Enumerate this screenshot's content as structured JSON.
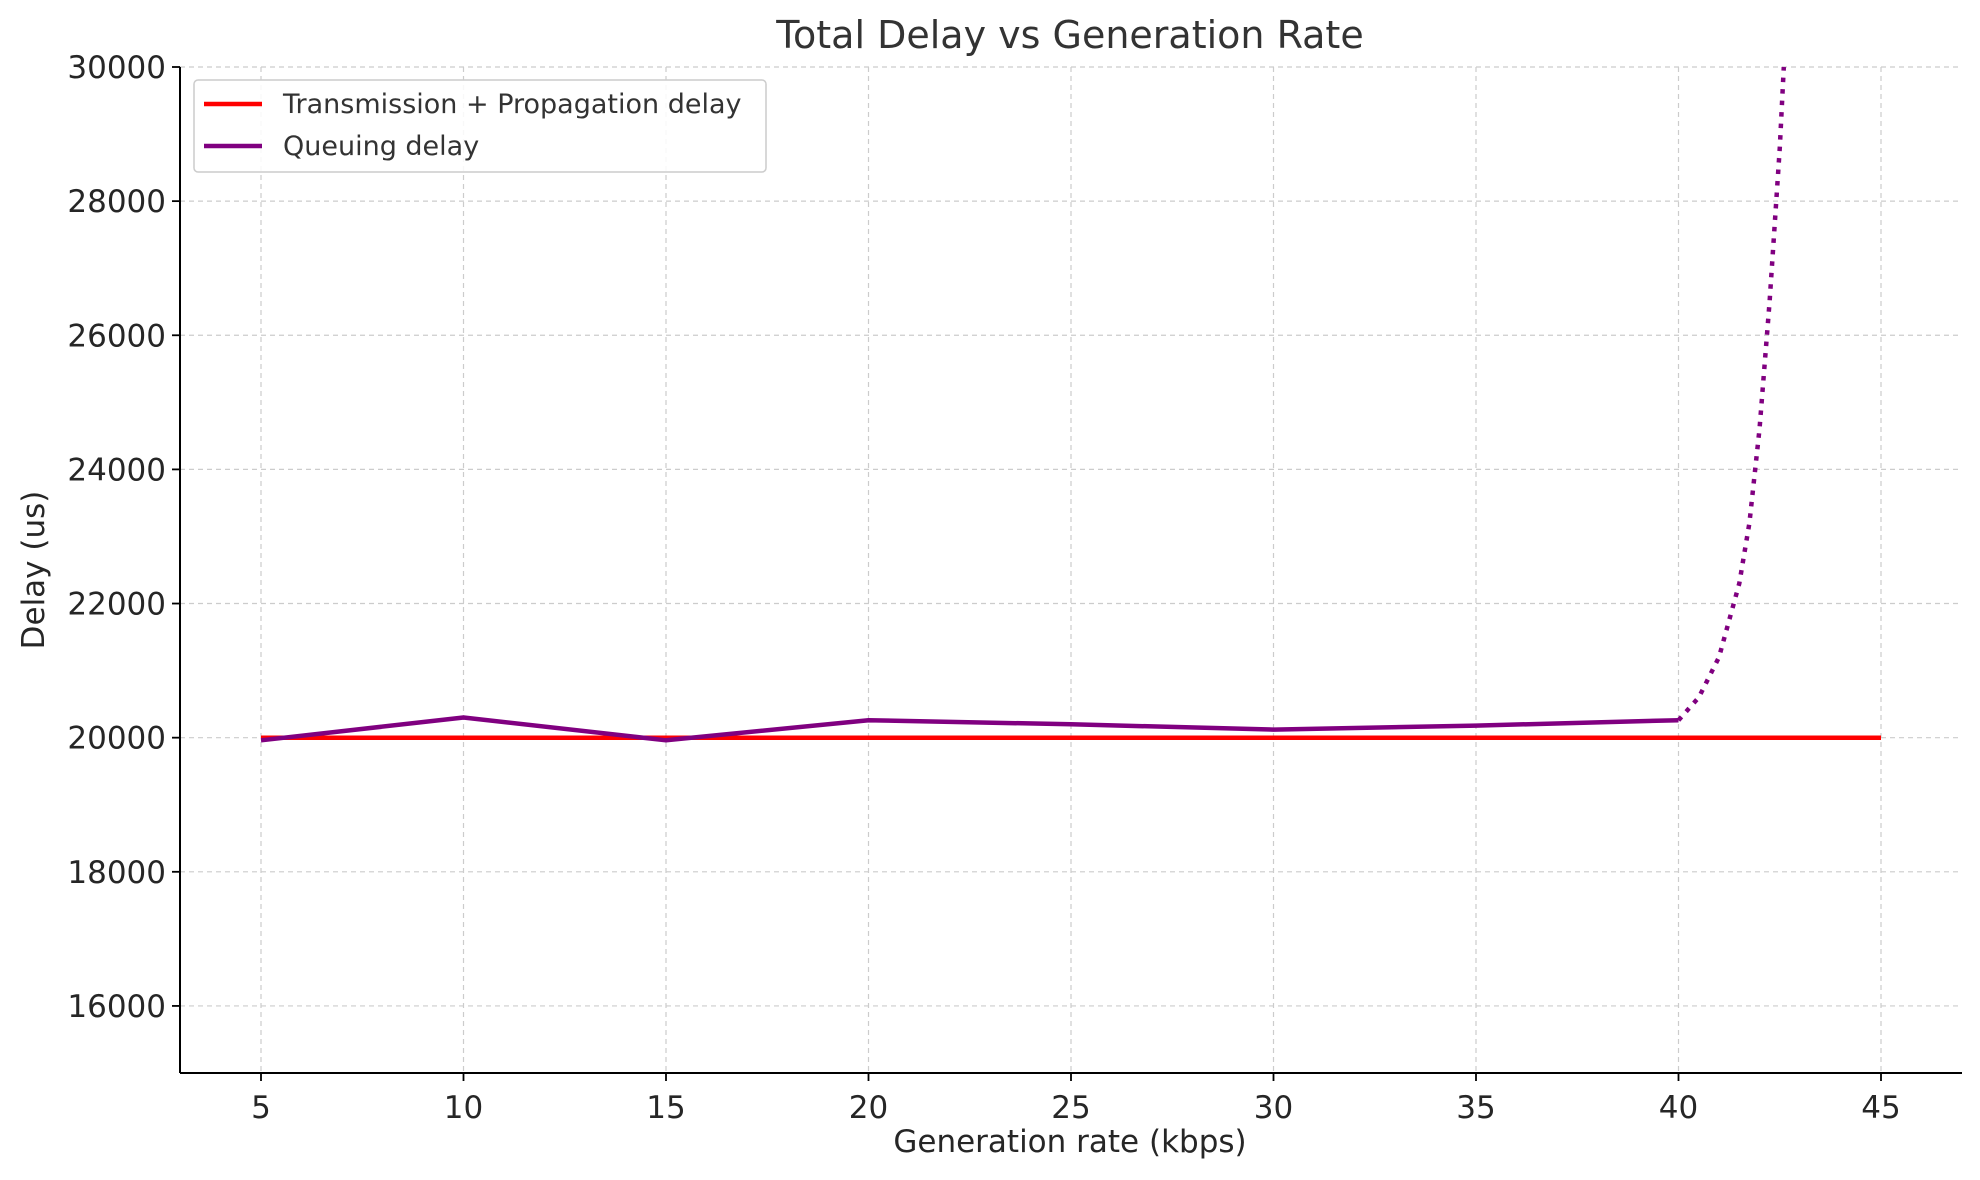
{
  "chart_data": {
    "type": "line",
    "title": "Total Delay vs Generation Rate",
    "xlabel": "Generation rate (kbps)",
    "ylabel": "Delay (us)",
    "xlim": [
      3,
      47
    ],
    "ylim": [
      15000,
      30000
    ],
    "xticks": [
      5,
      10,
      15,
      20,
      25,
      30,
      35,
      40,
      45
    ],
    "yticks": [
      16000,
      18000,
      20000,
      22000,
      24000,
      26000,
      28000,
      30000
    ],
    "grid": true,
    "legend_position": "top-left",
    "series": [
      {
        "name": "Transmission + Propagation delay",
        "color": "#ff0000",
        "style": "solid",
        "x": [
          5,
          45
        ],
        "y": [
          20000,
          20000
        ]
      },
      {
        "name": "Queuing delay",
        "color": "#800080",
        "style": "solid",
        "x": [
          5,
          10,
          15,
          20,
          25,
          30,
          35,
          40
        ],
        "y": [
          19960,
          20300,
          19960,
          20260,
          20200,
          20120,
          20180,
          20260
        ]
      },
      {
        "name": "",
        "color": "#800080",
        "style": "dotted",
        "x": [
          40,
          40.5,
          41,
          41.5,
          41.75,
          42,
          42.25,
          42.5,
          42.6
        ],
        "y": [
          20260,
          20600,
          21200,
          22300,
          23200,
          24600,
          26500,
          28800,
          30000
        ]
      }
    ]
  }
}
